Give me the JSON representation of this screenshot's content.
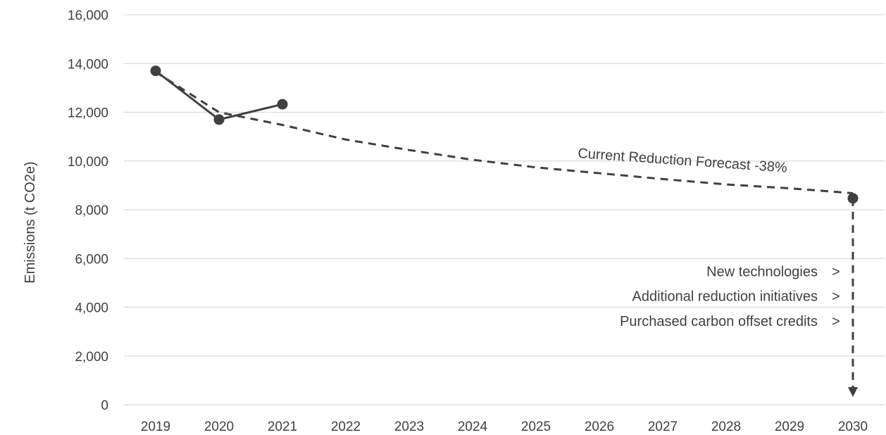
{
  "chart_data": {
    "type": "line",
    "ylabel": "Emissions (t CO2e)",
    "xlabel": "",
    "ylim": [
      0,
      16000
    ],
    "y_ticks": [
      "0",
      "2,000",
      "4,000",
      "6,000",
      "8,000",
      "10,000",
      "12,000",
      "14,000",
      "16,000"
    ],
    "y_tick_values": [
      0,
      2000,
      4000,
      6000,
      8000,
      10000,
      12000,
      14000,
      16000
    ],
    "categories": [
      "2019",
      "2020",
      "2021",
      "2022",
      "2023",
      "2024",
      "2025",
      "2026",
      "2027",
      "2028",
      "2029",
      "2030"
    ],
    "grid": true,
    "legend": "none",
    "series": [
      {
        "values": [
          13700,
          11700,
          12330,
          null,
          null,
          null,
          null,
          null,
          null,
          null,
          null,
          null
        ]
      },
      {
        "values": [
          13650,
          12000,
          11480,
          10880,
          10450,
          10050,
          9740,
          9500,
          9260,
          9040,
          8880,
          8680
        ]
      },
      {
        "values": [
          null,
          null,
          null,
          null,
          null,
          null,
          null,
          null,
          null,
          null,
          null,
          8470
        ]
      },
      {
        "values": [
          null,
          null,
          null,
          null,
          null,
          null,
          null,
          null,
          null,
          null,
          null,
          0
        ]
      }
    ],
    "annotations": {
      "forecast": "Current Reduction Forecast -38%",
      "items": [
        "New technologies",
        "Additional reduction initiatives",
        "Purchased carbon offset credits"
      ],
      "marker": ">"
    },
    "colors": {
      "line": "#404040",
      "grid": "#d9d9d9",
      "text": "#404040"
    }
  }
}
